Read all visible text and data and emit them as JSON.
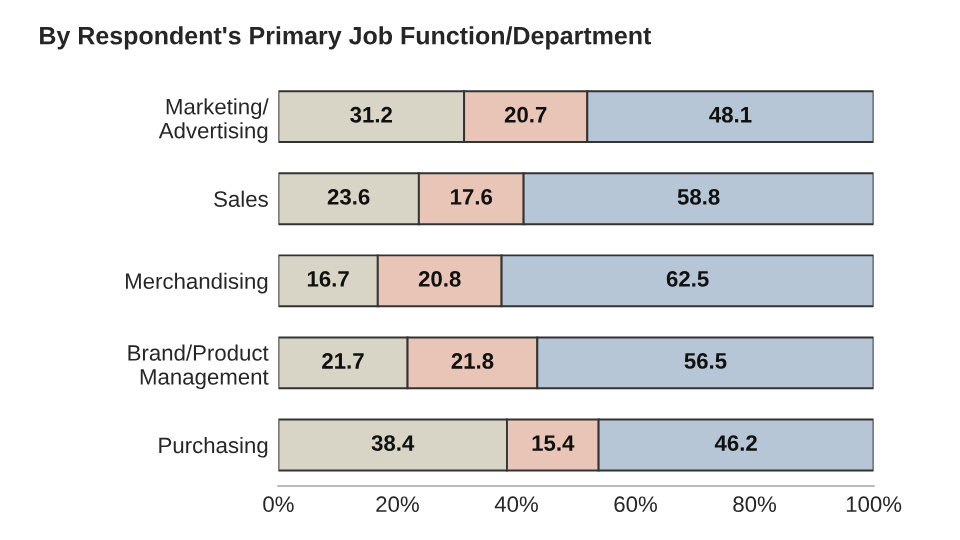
{
  "chart_data": {
    "type": "bar",
    "orientation": "horizontal",
    "stacked": true,
    "title": "By Respondent's Primary Job Function/Department",
    "categories": [
      "Marketing/\nAdvertising",
      "Sales",
      "Merchandising",
      "Brand/Product\nManagement",
      "Purchasing"
    ],
    "series": [
      {
        "color": "#d8d5c6",
        "values": [
          31.2,
          23.6,
          16.7,
          21.7,
          38.4
        ]
      },
      {
        "color": "#e8c5b6",
        "values": [
          20.7,
          17.6,
          20.8,
          21.8,
          15.4
        ]
      },
      {
        "color": "#b7c6d6",
        "values": [
          48.1,
          58.8,
          62.5,
          56.5,
          46.2
        ]
      }
    ],
    "xlim": [
      0,
      100
    ],
    "xticks": [
      {
        "value": 0,
        "label": "0%"
      },
      {
        "value": 20,
        "label": "20%"
      },
      {
        "value": 40,
        "label": "40%"
      },
      {
        "value": 60,
        "label": "60%"
      },
      {
        "value": 80,
        "label": "80%"
      },
      {
        "value": 100,
        "label": "100%"
      }
    ],
    "data_labels": true,
    "grid": false
  }
}
